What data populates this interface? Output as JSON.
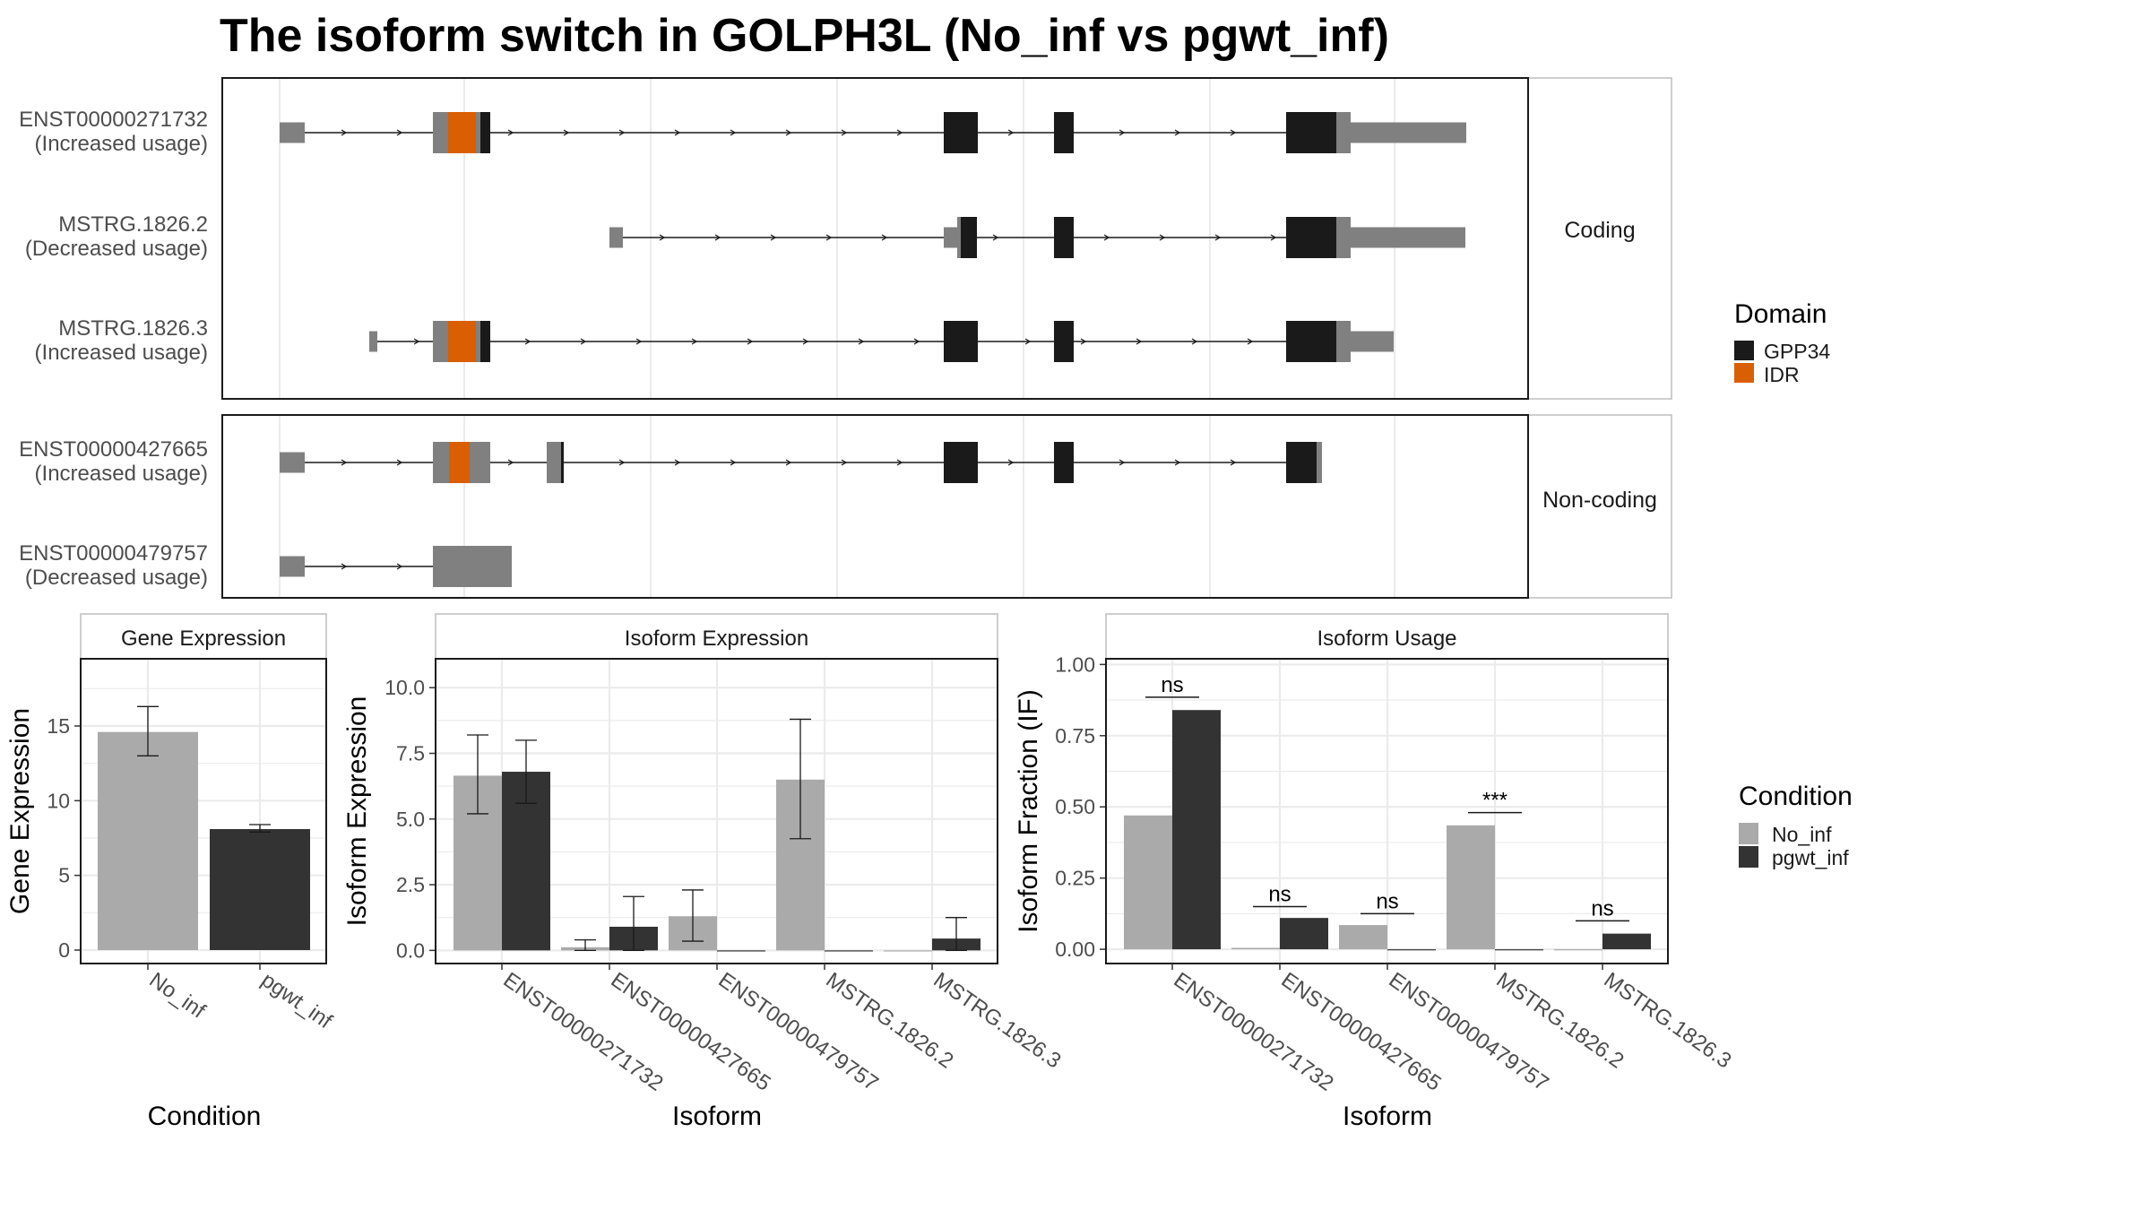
{
  "title": "The isoform switch in GOLPH3L (No_inf vs pgwt_inf)",
  "colors": {
    "gpp34": "#1a1a1a",
    "idr": "#d95f02",
    "exon": "#808080",
    "no_inf": "#aaaaaa",
    "pgwt_inf": "#333333",
    "grid": "#ebebeb",
    "strip": "#ffffff"
  },
  "structure": {
    "coding_label": "Coding",
    "noncoding_label": "Non-coding",
    "transcripts": [
      {
        "id": "ENST00000271732",
        "usage": "(Increased usage)",
        "group": "coding"
      },
      {
        "id": "MSTRG.1826.2",
        "usage": "(Decreased usage)",
        "group": "coding"
      },
      {
        "id": "MSTRG.1826.3",
        "usage": "(Increased usage)",
        "group": "coding"
      },
      {
        "id": "ENST00000427665",
        "usage": "(Increased usage)",
        "group": "noncoding"
      },
      {
        "id": "ENST00000479757",
        "usage": "(Decreased usage)",
        "group": "noncoding"
      }
    ]
  },
  "domain_legend": {
    "title": "Domain",
    "items": [
      {
        "label": "GPP34",
        "color": "#1a1a1a"
      },
      {
        "label": "IDR",
        "color": "#d95f02"
      }
    ]
  },
  "condition_legend": {
    "title": "Condition",
    "items": [
      {
        "label": "No_inf",
        "color": "#aaaaaa"
      },
      {
        "label": "pgwt_inf",
        "color": "#333333"
      }
    ]
  },
  "chart_data": [
    {
      "type": "bar",
      "title": "Gene Expression",
      "xlabel": "Condition",
      "ylabel": "Gene Expression",
      "categories": [
        "No_inf",
        "pgwt_inf"
      ],
      "values": [
        14.6,
        8.1
      ],
      "error_low": [
        13.0,
        7.9
      ],
      "error_high": [
        16.3,
        8.4
      ],
      "ylim": [
        -0.9,
        19.5
      ],
      "yticks": [
        0,
        5,
        10,
        15
      ],
      "grid": true
    },
    {
      "type": "bar",
      "title": "Isoform Expression",
      "xlabel": "Isoform",
      "ylabel": "Isoform Expression",
      "categories": [
        "ENST00000271732",
        "ENST00000427665",
        "ENST00000479757",
        "MSTRG.1826.2",
        "MSTRG.1826.3"
      ],
      "series": [
        {
          "name": "No_inf",
          "values": [
            6.65,
            0.12,
            1.3,
            6.5,
            0.0
          ],
          "error_low": [
            5.2,
            0.0,
            0.35,
            4.25,
            0.0
          ],
          "error_high": [
            8.2,
            0.4,
            2.3,
            8.8,
            0.0
          ]
        },
        {
          "name": "pgwt_inf",
          "values": [
            6.8,
            0.9,
            0.0,
            0.0,
            0.45
          ],
          "error_low": [
            5.6,
            0.0,
            0.0,
            0.0,
            0.0
          ],
          "error_high": [
            8.0,
            2.05,
            0.0,
            0.0,
            1.25
          ]
        }
      ],
      "ylim": [
        -0.5,
        11.1
      ],
      "yticks": [
        "0.0",
        "2.5",
        "5.0",
        "7.5",
        "10.0"
      ],
      "grid": true
    },
    {
      "type": "bar",
      "title": "Isoform Usage",
      "xlabel": "Isoform",
      "ylabel": "Isoform Fraction (IF)",
      "categories": [
        "ENST00000271732",
        "ENST00000427665",
        "ENST00000479757",
        "MSTRG.1826.2",
        "MSTRG.1826.3"
      ],
      "series": [
        {
          "name": "No_inf",
          "values": [
            0.47,
            0.005,
            0.085,
            0.435,
            0.0
          ]
        },
        {
          "name": "pgwt_inf",
          "values": [
            0.84,
            0.11,
            0.0,
            0.0,
            0.055
          ]
        }
      ],
      "significance": [
        "ns",
        "ns",
        "ns",
        "***",
        "ns"
      ],
      "significance_level": [
        0.885,
        0.15,
        0.125,
        0.48,
        0.1
      ],
      "ylim": [
        -0.05,
        1.02
      ],
      "yticks": [
        "0.00",
        "0.25",
        "0.50",
        "0.75",
        "1.00"
      ],
      "grid": true
    }
  ]
}
